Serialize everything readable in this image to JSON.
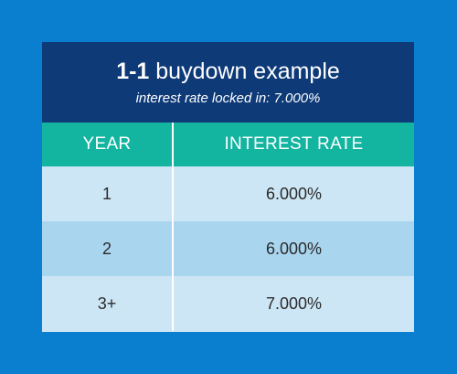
{
  "header": {
    "title_bold": "1-1",
    "title_rest": " buydown example",
    "subtitle": "interest rate locked in: 7.000%"
  },
  "table": {
    "columns": [
      "YEAR",
      "INTEREST RATE"
    ],
    "rows": [
      {
        "year": "1",
        "rate": "6.000%"
      },
      {
        "year": "2",
        "rate": "6.000%"
      },
      {
        "year": "3+",
        "rate": "7.000%"
      }
    ]
  },
  "colors": {
    "background": "#0a7fcf",
    "header_bg": "#0e3a78",
    "column_header_bg": "#13b4a0",
    "row_light": "#cde6f5",
    "row_mid": "#a9d5ef"
  }
}
